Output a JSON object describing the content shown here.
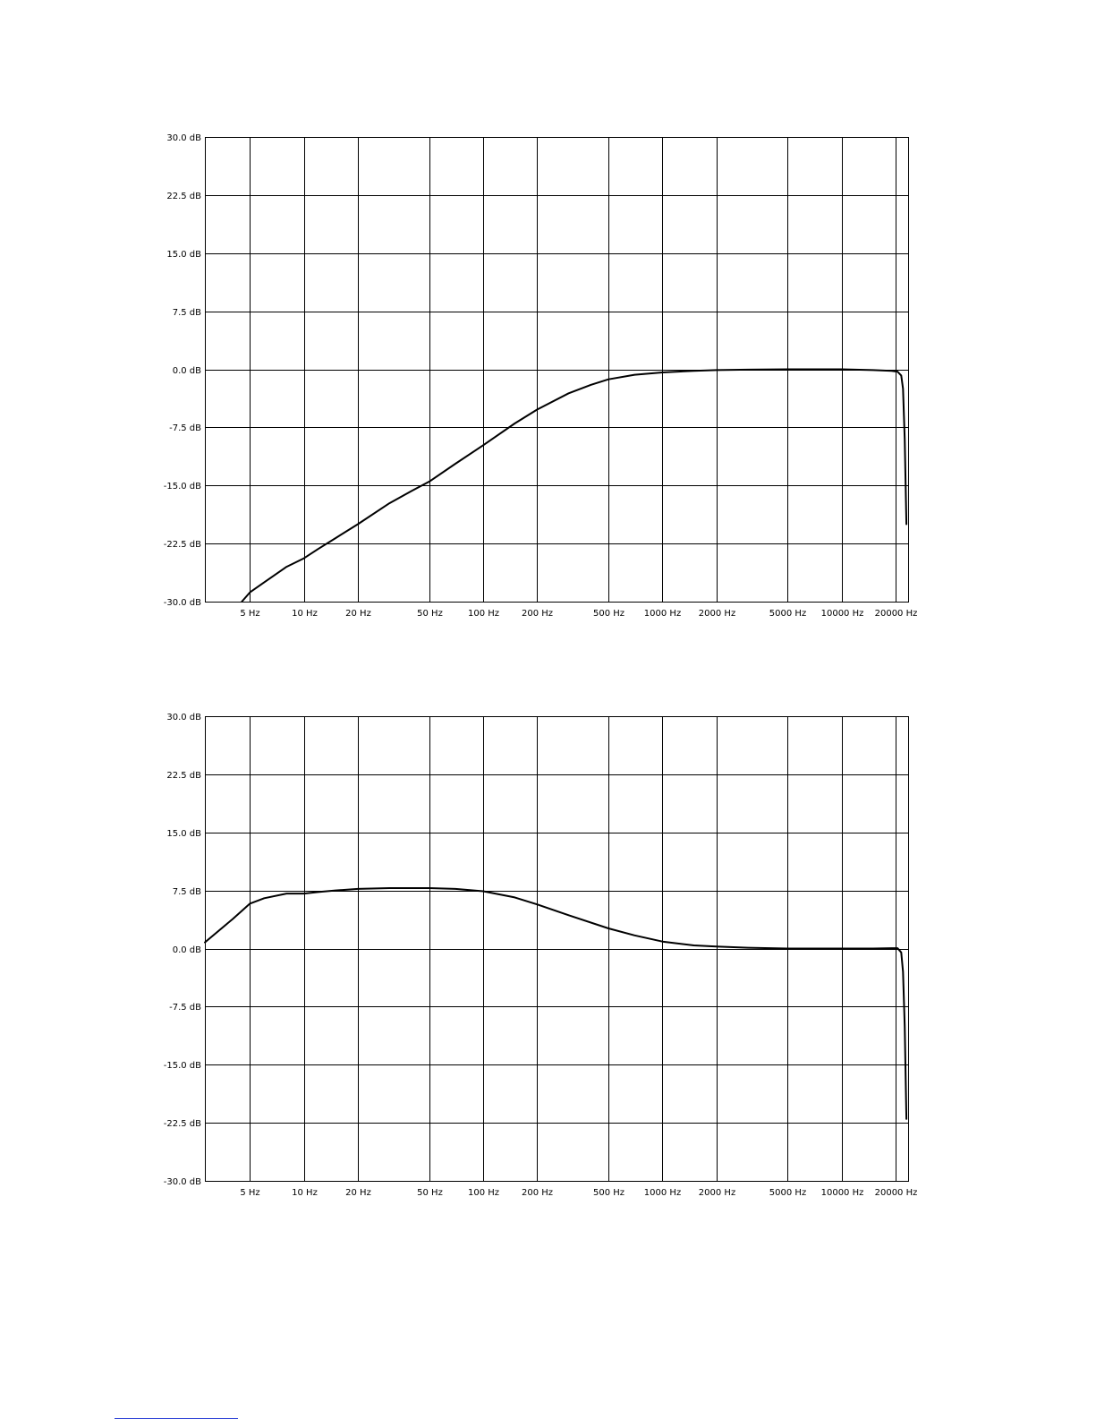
{
  "chart_data": [
    {
      "type": "line",
      "title": "",
      "xlabel": "",
      "ylabel": "",
      "x_scale": "log",
      "xlim": [
        2.8,
        23500
      ],
      "ylim": [
        -30,
        30
      ],
      "grid": true,
      "x_ticks": [
        5,
        10,
        20,
        50,
        100,
        200,
        500,
        1000,
        2000,
        5000,
        10000,
        20000
      ],
      "x_tick_labels": [
        "5 Hz",
        "10 Hz",
        "20 Hz",
        "50 Hz",
        "100 Hz",
        "200 Hz",
        "500 Hz",
        "1000 Hz",
        "2000 Hz",
        "5000 Hz",
        "10000 Hz",
        "20000 Hz"
      ],
      "y_ticks": [
        30,
        22.5,
        15,
        7.5,
        0,
        -7.5,
        -15,
        -22.5,
        -30
      ],
      "y_tick_labels": [
        "30.0 dB",
        "22.5 dB",
        "15.0 dB",
        "7.5 dB",
        "0.0 dB",
        "-7.5 dB",
        "-15.0 dB",
        "-22.5 dB",
        "-30.0 dB"
      ],
      "series": [
        {
          "x": [
            4.5,
            5,
            6,
            8,
            10,
            12,
            15,
            20,
            30,
            40,
            50,
            70,
            100,
            150,
            200,
            300,
            400,
            500,
            700,
            1000,
            1500,
            2000,
            3000,
            5000,
            7000,
            10000,
            15000,
            19000,
            20500,
            21500,
            22000,
            22500,
            23000
          ],
          "y": [
            -30,
            -28.8,
            -27.5,
            -25.5,
            -24.4,
            -23.2,
            -21.8,
            -20,
            -17.3,
            -15.7,
            -14.5,
            -12.2,
            -9.8,
            -7,
            -5.2,
            -3.1,
            -2,
            -1.3,
            -0.7,
            -0.4,
            -0.2,
            -0.1,
            -0.05,
            0,
            0,
            0,
            -0.1,
            -0.2,
            -0.3,
            -0.8,
            -2.5,
            -9,
            -20
          ]
        }
      ]
    },
    {
      "type": "line",
      "title": "",
      "xlabel": "",
      "ylabel": "",
      "x_scale": "log",
      "xlim": [
        2.8,
        23500
      ],
      "ylim": [
        -30,
        30
      ],
      "grid": true,
      "x_ticks": [
        5,
        10,
        20,
        50,
        100,
        200,
        500,
        1000,
        2000,
        5000,
        10000,
        20000
      ],
      "x_tick_labels": [
        "5 Hz",
        "10 Hz",
        "20 Hz",
        "50 Hz",
        "100 Hz",
        "200 Hz",
        "500 Hz",
        "1000 Hz",
        "2000 Hz",
        "5000 Hz",
        "10000 Hz",
        "20000 Hz"
      ],
      "y_ticks": [
        30,
        22.5,
        15,
        7.5,
        0,
        -7.5,
        -15,
        -22.5,
        -30
      ],
      "y_tick_labels": [
        "30.0 dB",
        "22.5 dB",
        "15.0 dB",
        "7.5 dB",
        "0.0 dB",
        "-7.5 dB",
        "-15.0 dB",
        "-22.5 dB",
        "-30.0 dB"
      ],
      "series": [
        {
          "x": [
            2.8,
            4,
            5,
            6,
            8,
            10,
            12,
            15,
            20,
            30,
            40,
            50,
            70,
            100,
            150,
            200,
            300,
            500,
            700,
            1000,
            1500,
            2000,
            3000,
            5000,
            10000,
            15000,
            19000,
            20500,
            21500,
            22000,
            22500,
            23000
          ],
          "y": [
            0.8,
            3.8,
            5.8,
            6.5,
            7.1,
            7.1,
            7.3,
            7.5,
            7.7,
            7.8,
            7.8,
            7.8,
            7.7,
            7.4,
            6.6,
            5.7,
            4.3,
            2.6,
            1.7,
            0.9,
            0.4,
            0.25,
            0.1,
            0,
            0,
            0,
            0.05,
            0.05,
            -0.5,
            -3,
            -10,
            -22
          ]
        }
      ]
    }
  ]
}
